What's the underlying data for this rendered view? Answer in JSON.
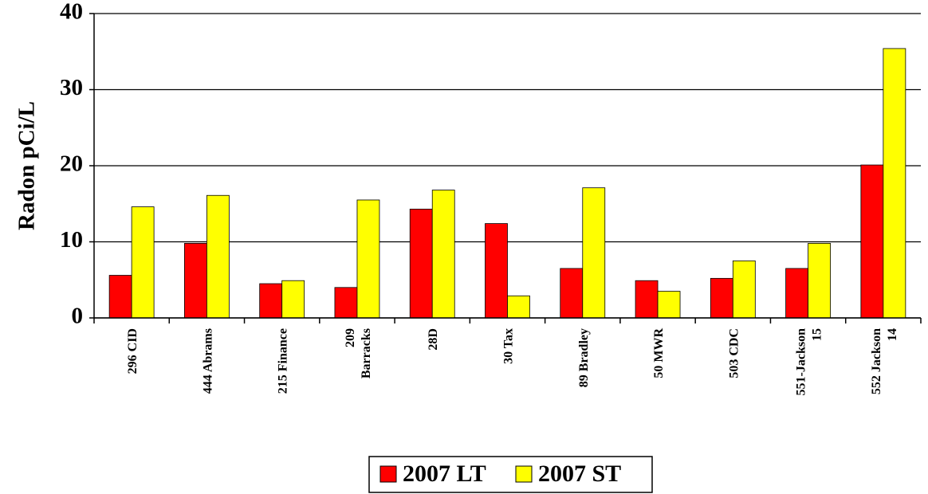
{
  "chart_data": {
    "type": "bar",
    "ylabel": "Radon pCi/L",
    "categories": [
      "296 CID",
      "444 Abrams",
      "215 Finance",
      "209\nBarracks",
      "28D",
      "30 Tax",
      "89 Bradley",
      "50 MWR",
      "503 CDC",
      "551-Jackson\n15",
      "552 Jackson\n14"
    ],
    "series": [
      {
        "name": "2007 LT",
        "color": "#ff0000",
        "values": [
          5.6,
          9.8,
          4.5,
          4.0,
          14.3,
          12.4,
          6.5,
          4.9,
          5.2,
          6.5,
          20.1
        ]
      },
      {
        "name": "2007 ST",
        "color": "#ffff00",
        "values": [
          14.6,
          16.1,
          4.9,
          15.5,
          16.8,
          2.9,
          17.1,
          3.5,
          7.5,
          9.8,
          35.4
        ]
      }
    ],
    "ylim": [
      0,
      40
    ],
    "yticks": [
      0,
      10,
      20,
      30,
      40
    ],
    "grid": true,
    "legend": "bottom"
  }
}
